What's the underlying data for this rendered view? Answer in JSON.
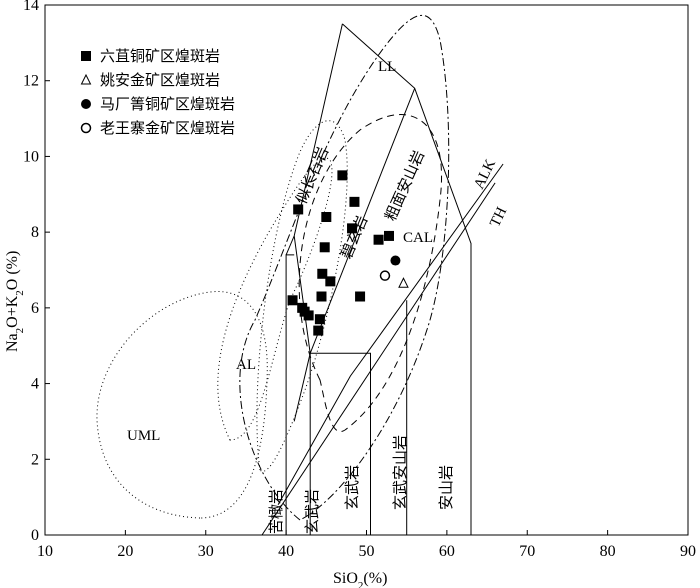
{
  "chart_data": {
    "type": "scatter",
    "xlabel": "SiO2(%)",
    "ylabel": "Na2O+K2O (%)",
    "xlim": [
      10,
      90
    ],
    "ylim": [
      0,
      14
    ],
    "x_ticks": [
      10,
      20,
      30,
      40,
      50,
      60,
      70,
      80,
      90
    ],
    "y_ticks": [
      0,
      2,
      4,
      6,
      8,
      10,
      12,
      14
    ],
    "grid": false,
    "legend_position": "top-left",
    "series": [
      {
        "name": "六苴铜矿区煌斑岩",
        "marker": "filled-square",
        "x": [
          41.5,
          40.8,
          42.0,
          42.3,
          42.8,
          44.0,
          44.2,
          44.4,
          44.5,
          44.8,
          45.0,
          45.5,
          47.0,
          48.2,
          48.5,
          49.2,
          51.5,
          52.8
        ],
        "y": [
          8.6,
          6.2,
          6.0,
          5.9,
          5.8,
          5.4,
          5.7,
          6.3,
          6.9,
          7.6,
          8.4,
          6.7,
          9.5,
          8.1,
          8.8,
          6.3,
          7.8,
          7.9
        ]
      },
      {
        "name": "姚安金矿区煌斑岩",
        "marker": "open-triangle",
        "x": [
          54.6
        ],
        "y": [
          6.65
        ]
      },
      {
        "name": "马厂箐铜矿区煌斑岩",
        "marker": "filled-circle",
        "x": [
          53.6
        ],
        "y": [
          7.25
        ]
      },
      {
        "name": "老王寨金矿区煌斑岩",
        "marker": "open-circle",
        "x": [
          52.3
        ],
        "y": [
          6.85
        ]
      }
    ],
    "region_labels": {
      "LL": "LL",
      "AL": "AL",
      "UML": "UML",
      "CAL": "CAL",
      "ALK": "ALK",
      "TH": "TH",
      "trachyte": "似长石岩",
      "basanite": "碧玄岩",
      "trachyandesite": "粗面安山岩",
      "picrobasalt": "苦橄岩",
      "basalt1": "玄武岩",
      "basalt2": "玄武岩",
      "basaltic_andesite": "玄武安山岩",
      "andesite": "安山岩"
    }
  }
}
